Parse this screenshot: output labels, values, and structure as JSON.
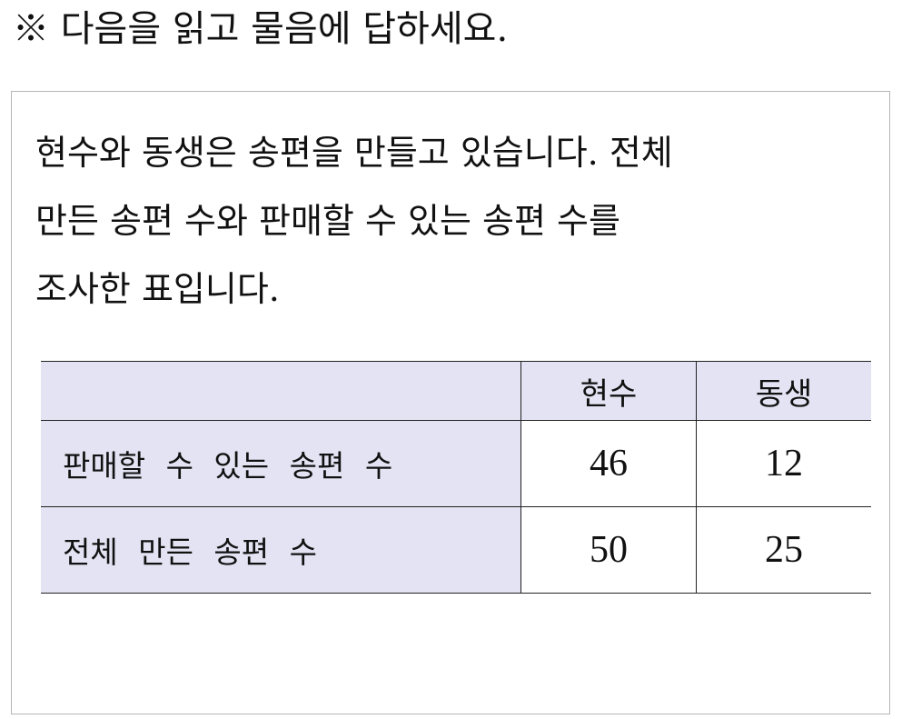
{
  "instruction": "※ 다음을 읽고 물음에 답하세요.",
  "problem": {
    "lines": [
      "현수와 동생은 송편을 만들고 있습니다. 전체",
      "만든 송편 수와 판매할 수 있는 송편 수를",
      "조사한 표입니다."
    ]
  },
  "table": {
    "headers": [
      "",
      "현수",
      "동생"
    ],
    "rows": [
      {
        "label": "판매할 수 있는 송편 수",
        "values": [
          "46",
          "12"
        ]
      },
      {
        "label": "전체 만든 송편 수",
        "values": [
          "50",
          "25"
        ]
      }
    ]
  },
  "colors": {
    "header_bg": "#e3e3f3",
    "box_border": "#b5b5b5"
  }
}
